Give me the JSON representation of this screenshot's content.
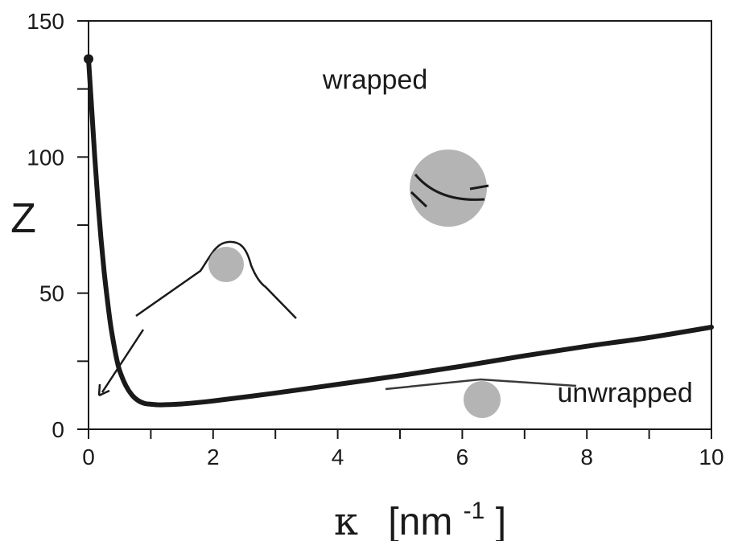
{
  "chart_data": {
    "type": "line",
    "xlabel": {
      "symbol": "κ",
      "unit_open": "[nm",
      "unit_sup": "-1",
      "unit_close": "]"
    },
    "ylabel": "Z",
    "xlim": [
      0,
      10
    ],
    "ylim": [
      0,
      150
    ],
    "x_ticks": [
      0,
      2,
      4,
      6,
      8,
      10
    ],
    "y_ticks": [
      0,
      50,
      100,
      150
    ],
    "x_tick_labels": [
      "0",
      "2",
      "4",
      "6",
      "8",
      "10"
    ],
    "y_tick_labels": [
      "0",
      "50",
      "100",
      "150"
    ],
    "grid": false,
    "series": [
      {
        "color": "#1a1a1a",
        "x": [
          0.0,
          0.05,
          0.1,
          0.15,
          0.2,
          0.25,
          0.3,
          0.35,
          0.4,
          0.45,
          0.5,
          0.6,
          0.7,
          0.8,
          0.9,
          1.0,
          1.1,
          1.2,
          1.5,
          2.0,
          3.0,
          4.0,
          5.0,
          6.0,
          7.0,
          8.0,
          9.0,
          10.0
        ],
        "y": [
          136,
          118,
          100,
          84,
          70,
          58,
          48,
          39,
          32,
          26,
          21.5,
          16,
          12.5,
          10.5,
          9.5,
          9.2,
          9.0,
          9.0,
          9.3,
          10.4,
          13.3,
          16.5,
          19.7,
          23.2,
          27,
          30.5,
          33.7,
          37.5
        ]
      }
    ],
    "markers": [
      {
        "x": 0.0,
        "y": 136
      }
    ],
    "annotations": [
      {
        "text": "wrapped",
        "x": 4.6,
        "y": 125
      },
      {
        "text": "unwrapped",
        "x": 9.7,
        "y": 10
      }
    ],
    "colors": {
      "line": "#1a1a1a",
      "sphere": "#b4b4b4"
    }
  }
}
